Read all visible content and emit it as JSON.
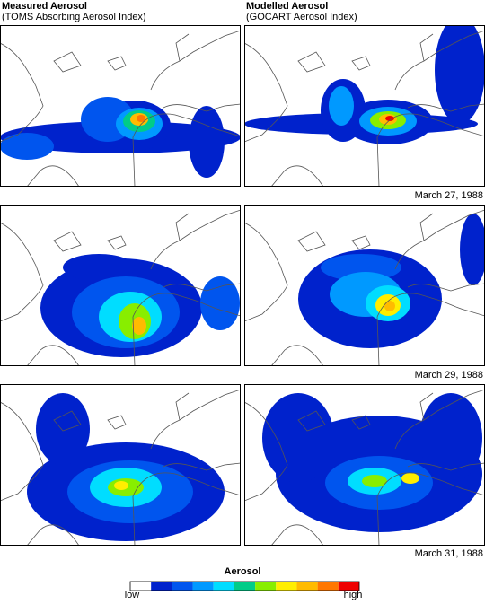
{
  "header": {
    "left_title": "Measured Aerosol",
    "left_subtitle": "(TOMS  Absorbing Aerosol Index)",
    "right_title": "Modelled Aerosol",
    "right_subtitle": "(GOCART Aerosol Index)"
  },
  "panels": {
    "dates": [
      "March 27, 1988",
      "March 29, 1988",
      "March 31, 1988"
    ]
  },
  "legend": {
    "title": "Aerosol",
    "low": "low",
    "high": "high",
    "colors": [
      "#ffffff",
      "#0022cc",
      "#0055ee",
      "#0099ff",
      "#00ddff",
      "#00cc88",
      "#88ee00",
      "#ffee00",
      "#ffbb00",
      "#ff7700",
      "#ee0000"
    ]
  }
}
